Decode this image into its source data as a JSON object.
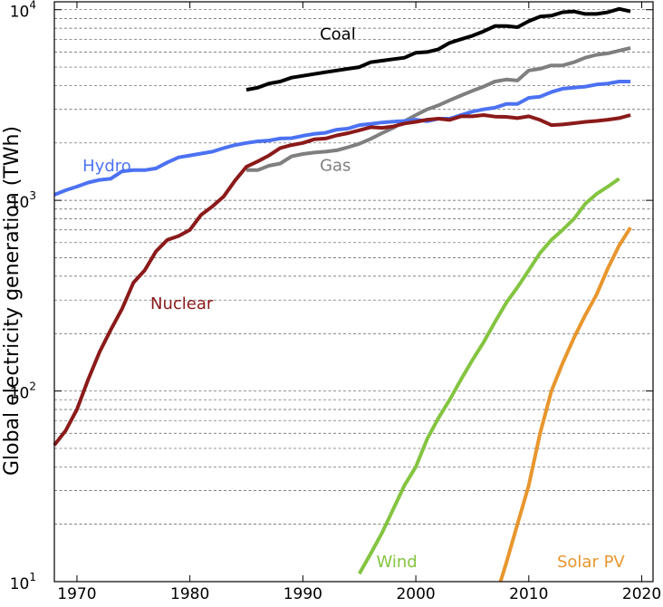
{
  "chart_data": {
    "type": "line",
    "title": "",
    "xlabel": "",
    "ylabel": "Global electricity generation (TWh)",
    "yscale": "log",
    "xlim": [
      1968,
      2021
    ],
    "ylim": [
      10,
      11000
    ],
    "grid": "horizontal dashed, major and minor",
    "legend": "inline labels",
    "x_ticks": [
      1970,
      1980,
      1990,
      2000,
      2010,
      2020
    ],
    "y_ticks": [
      {
        "value": 10,
        "base": "10",
        "exp": "1"
      },
      {
        "value": 100,
        "base": "10",
        "exp": "2"
      },
      {
        "value": 1000,
        "base": "10",
        "exp": "3"
      },
      {
        "value": 10000,
        "base": "10",
        "exp": "4"
      }
    ],
    "series": [
      {
        "name": "Coal",
        "color": "#000000",
        "label_at": [
          1991.5,
          7000
        ],
        "x": [
          1985,
          1986,
          1987,
          1988,
          1989,
          1990,
          1991,
          1992,
          1993,
          1994,
          1995,
          1996,
          1997,
          1998,
          1999,
          2000,
          2001,
          2002,
          2003,
          2004,
          2005,
          2006,
          2007,
          2008,
          2009,
          2010,
          2011,
          2012,
          2013,
          2014,
          2015,
          2016,
          2017,
          2018,
          2019
        ],
        "y": [
          3800,
          3900,
          4100,
          4200,
          4400,
          4500,
          4600,
          4700,
          4800,
          4900,
          5000,
          5300,
          5400,
          5500,
          5600,
          5950,
          6000,
          6200,
          6700,
          7000,
          7300,
          7700,
          8200,
          8200,
          8100,
          8700,
          9200,
          9300,
          9700,
          9800,
          9500,
          9500,
          9700,
          10100,
          9800
        ]
      },
      {
        "name": "Gas",
        "color": "#7f7f7f",
        "label_at": [
          1991.5,
          1430
        ],
        "x": [
          1985,
          1986,
          1987,
          1988,
          1989,
          1990,
          1991,
          1992,
          1993,
          1994,
          1995,
          1996,
          1997,
          1998,
          1999,
          2000,
          2001,
          2002,
          2003,
          2004,
          2005,
          2006,
          2007,
          2008,
          2009,
          2010,
          2011,
          2012,
          2013,
          2014,
          2015,
          2016,
          2017,
          2018,
          2019
        ],
        "y": [
          1440,
          1440,
          1520,
          1560,
          1700,
          1750,
          1780,
          1800,
          1830,
          1900,
          1980,
          2100,
          2250,
          2400,
          2600,
          2800,
          3000,
          3150,
          3350,
          3550,
          3750,
          3950,
          4200,
          4300,
          4250,
          4800,
          4900,
          5100,
          5100,
          5300,
          5600,
          5800,
          5900,
          6100,
          6300
        ]
      },
      {
        "name": "Hydro",
        "color": "#4c72f2",
        "label_at": [
          1970.5,
          1420
        ],
        "x": [
          1968,
          1969,
          1970,
          1971,
          1972,
          1973,
          1974,
          1975,
          1976,
          1977,
          1978,
          1979,
          1980,
          1981,
          1982,
          1983,
          1984,
          1985,
          1986,
          1987,
          1988,
          1989,
          1990,
          1991,
          1992,
          1993,
          1994,
          1995,
          1996,
          1997,
          1998,
          1999,
          2000,
          2001,
          2002,
          2003,
          2004,
          2005,
          2006,
          2007,
          2008,
          2009,
          2010,
          2011,
          2012,
          2013,
          2014,
          2015,
          2016,
          2017,
          2018,
          2019
        ],
        "y": [
          1070,
          1130,
          1180,
          1240,
          1280,
          1300,
          1420,
          1440,
          1440,
          1470,
          1580,
          1680,
          1720,
          1760,
          1800,
          1880,
          1950,
          2000,
          2040,
          2060,
          2110,
          2120,
          2180,
          2230,
          2260,
          2350,
          2380,
          2480,
          2520,
          2560,
          2590,
          2610,
          2650,
          2600,
          2680,
          2680,
          2800,
          2920,
          3000,
          3060,
          3200,
          3200,
          3450,
          3500,
          3700,
          3850,
          3900,
          3950,
          4050,
          4100,
          4200,
          4200
        ]
      },
      {
        "name": "Nuclear",
        "color": "#8b1a1a",
        "label_at": [
          1976.5,
          270
        ],
        "x": [
          1968,
          1969,
          1970,
          1971,
          1972,
          1973,
          1974,
          1975,
          1976,
          1977,
          1978,
          1979,
          1980,
          1981,
          1982,
          1983,
          1984,
          1985,
          1986,
          1987,
          1988,
          1989,
          1990,
          1991,
          1992,
          1993,
          1994,
          1995,
          1996,
          1997,
          1998,
          1999,
          2000,
          2001,
          2002,
          2003,
          2004,
          2005,
          2006,
          2007,
          2008,
          2009,
          2010,
          2011,
          2012,
          2013,
          2014,
          2015,
          2016,
          2017,
          2018,
          2019
        ],
        "y": [
          52,
          62,
          80,
          115,
          160,
          210,
          270,
          370,
          430,
          540,
          620,
          650,
          700,
          840,
          930,
          1050,
          1270,
          1500,
          1600,
          1720,
          1880,
          1950,
          2000,
          2090,
          2110,
          2190,
          2250,
          2330,
          2420,
          2400,
          2440,
          2530,
          2580,
          2650,
          2680,
          2640,
          2760,
          2760,
          2800,
          2750,
          2740,
          2700,
          2760,
          2640,
          2480,
          2500,
          2540,
          2580,
          2610,
          2650,
          2700,
          2800
        ]
      },
      {
        "name": "Wind",
        "color": "#84c441",
        "label_at": [
          1996.5,
          11.9
        ],
        "x": [
          1995,
          1996,
          1997,
          1998,
          1999,
          2000,
          2001,
          2002,
          2003,
          2004,
          2005,
          2006,
          2007,
          2008,
          2009,
          2010,
          2011,
          2012,
          2013,
          2014,
          2015,
          2016,
          2017,
          2018
        ],
        "y": [
          11,
          14,
          18,
          24,
          32,
          40,
          56,
          72,
          90,
          115,
          145,
          180,
          230,
          290,
          350,
          430,
          530,
          620,
          700,
          800,
          960,
          1080,
          1180,
          1300
        ]
      },
      {
        "name": "Solar PV",
        "color": "#e8962e",
        "label_at": [
          2012.5,
          11.9
        ],
        "x": [
          2007.5,
          2008,
          2009,
          2010,
          2011,
          2012,
          2013,
          2014,
          2015,
          2016,
          2017,
          2018,
          2019
        ],
        "y": [
          10,
          12.5,
          20,
          32,
          60,
          100,
          140,
          190,
          250,
          320,
          440,
          580,
          720
        ]
      }
    ]
  }
}
